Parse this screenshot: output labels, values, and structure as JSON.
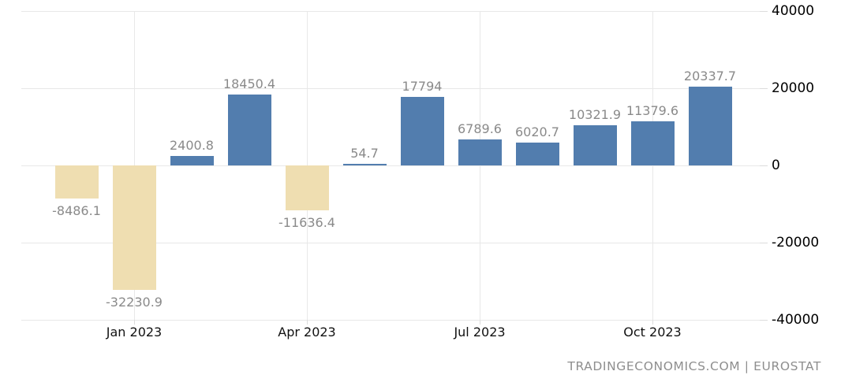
{
  "chart_data": {
    "type": "bar",
    "values": [
      -8486.1,
      -32230.9,
      2400.8,
      18450.4,
      -11636.4,
      54.7,
      17794,
      6789.6,
      6020.7,
      10321.9,
      11379.6,
      20337.7
    ],
    "value_labels": [
      "-8486.1",
      "-32230.9",
      "2400.8",
      "18450.4",
      "-11636.4",
      "54.7",
      "17794",
      "6789.6",
      "6020.7",
      "10321.9",
      "11379.6",
      "20337.7"
    ],
    "x_tick_labels": [
      "Jan 2023",
      "Apr 2023",
      "Jul 2023",
      "Oct 2023"
    ],
    "x_tick_bar_indexes": [
      1,
      4,
      7,
      10
    ],
    "y_tick_labels": [
      "40000",
      "20000",
      "0",
      "-20000",
      "-40000"
    ],
    "y_tick_values": [
      40000,
      20000,
      0,
      -20000,
      -40000
    ],
    "ylim": [
      -40000,
      40000
    ],
    "grid": true,
    "legend": "none",
    "title": "",
    "xlabel": "",
    "ylabel": "",
    "colors": {
      "positive_bar": "#527dae",
      "negative_bar": "#efdeb1",
      "value_label": "#8a8a8a",
      "axis_label": "#000000",
      "gridline": "#e8e8e8",
      "attribution": "#8e8e8e"
    },
    "attribution": "TRADINGECONOMICS.COM | EUROSTAT"
  }
}
